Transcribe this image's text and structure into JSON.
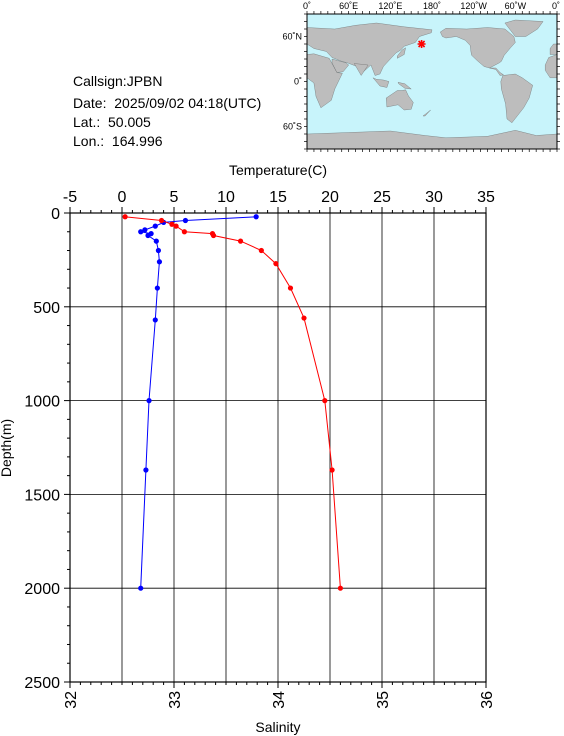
{
  "info": {
    "callsign": "Callsign:JPBN",
    "date": "Date:  2025/09/02 04:18(UTC)",
    "lat": "Lat.:  50.005",
    "lon": "Lon.:  164.996"
  },
  "map": {
    "top_labels": [
      "0˚",
      "60˚E",
      "120˚E",
      "180˚",
      "120˚W",
      "60˚W",
      "0˚"
    ],
    "left_labels": [
      "60˚N",
      "0˚",
      "60˚S"
    ],
    "ocean_color": "#c8f4fb",
    "land_color": "#bdbdbd",
    "marker_color": "#ff0000",
    "marker": {
      "lon": 165.0,
      "lat": 50.0
    }
  },
  "chart_data": {
    "type": "line",
    "title": "",
    "top_axis": {
      "label": "Temperature(C)",
      "range": [
        -5,
        35
      ],
      "ticks": [
        "-5",
        "0",
        "5",
        "10",
        "15",
        "20",
        "25",
        "30",
        "35"
      ],
      "tick_values": [
        -5,
        0,
        5,
        10,
        15,
        20,
        25,
        30,
        35
      ]
    },
    "bottom_axis": {
      "label": "Salinity",
      "range": [
        32,
        36
      ],
      "ticks": [
        "32",
        "33",
        "34",
        "35",
        "36"
      ],
      "tick_values": [
        32,
        33,
        34,
        35,
        36
      ]
    },
    "y_axis": {
      "label": "Depth(m)",
      "range": [
        0,
        2500
      ],
      "ticks": [
        "0",
        "500",
        "1000",
        "1500",
        "2000",
        "2500"
      ],
      "tick_values": [
        0,
        500,
        1000,
        1500,
        2000,
        2500
      ],
      "inverted": true
    },
    "grid": true,
    "series": [
      {
        "axis": "temperature",
        "color": "#0000ff",
        "points": [
          {
            "depth": 20,
            "value": 12.9
          },
          {
            "depth": 40,
            "value": 6.1
          },
          {
            "depth": 50,
            "value": 4.0
          },
          {
            "depth": 70,
            "value": 3.2
          },
          {
            "depth": 90,
            "value": 2.2
          },
          {
            "depth": 100,
            "value": 1.8
          },
          {
            "depth": 110,
            "value": 2.8
          },
          {
            "depth": 120,
            "value": 2.5
          },
          {
            "depth": 150,
            "value": 3.3
          },
          {
            "depth": 200,
            "value": 3.5
          },
          {
            "depth": 260,
            "value": 3.6
          },
          {
            "depth": 400,
            "value": 3.4
          },
          {
            "depth": 570,
            "value": 3.2
          },
          {
            "depth": 1000,
            "value": 2.6
          },
          {
            "depth": 1370,
            "value": 2.3
          },
          {
            "depth": 2000,
            "value": 1.8
          }
        ]
      },
      {
        "axis": "salinity",
        "color": "#ff0000",
        "points": [
          {
            "depth": 20,
            "value": 32.53
          },
          {
            "depth": 40,
            "value": 32.88
          },
          {
            "depth": 60,
            "value": 32.98
          },
          {
            "depth": 70,
            "value": 33.02
          },
          {
            "depth": 100,
            "value": 33.1
          },
          {
            "depth": 110,
            "value": 33.37
          },
          {
            "depth": 120,
            "value": 33.38
          },
          {
            "depth": 150,
            "value": 33.64
          },
          {
            "depth": 200,
            "value": 33.84
          },
          {
            "depth": 270,
            "value": 33.98
          },
          {
            "depth": 400,
            "value": 34.12
          },
          {
            "depth": 560,
            "value": 34.25
          },
          {
            "depth": 1000,
            "value": 34.45
          },
          {
            "depth": 1370,
            "value": 34.52
          },
          {
            "depth": 2000,
            "value": 34.6
          }
        ]
      }
    ]
  }
}
